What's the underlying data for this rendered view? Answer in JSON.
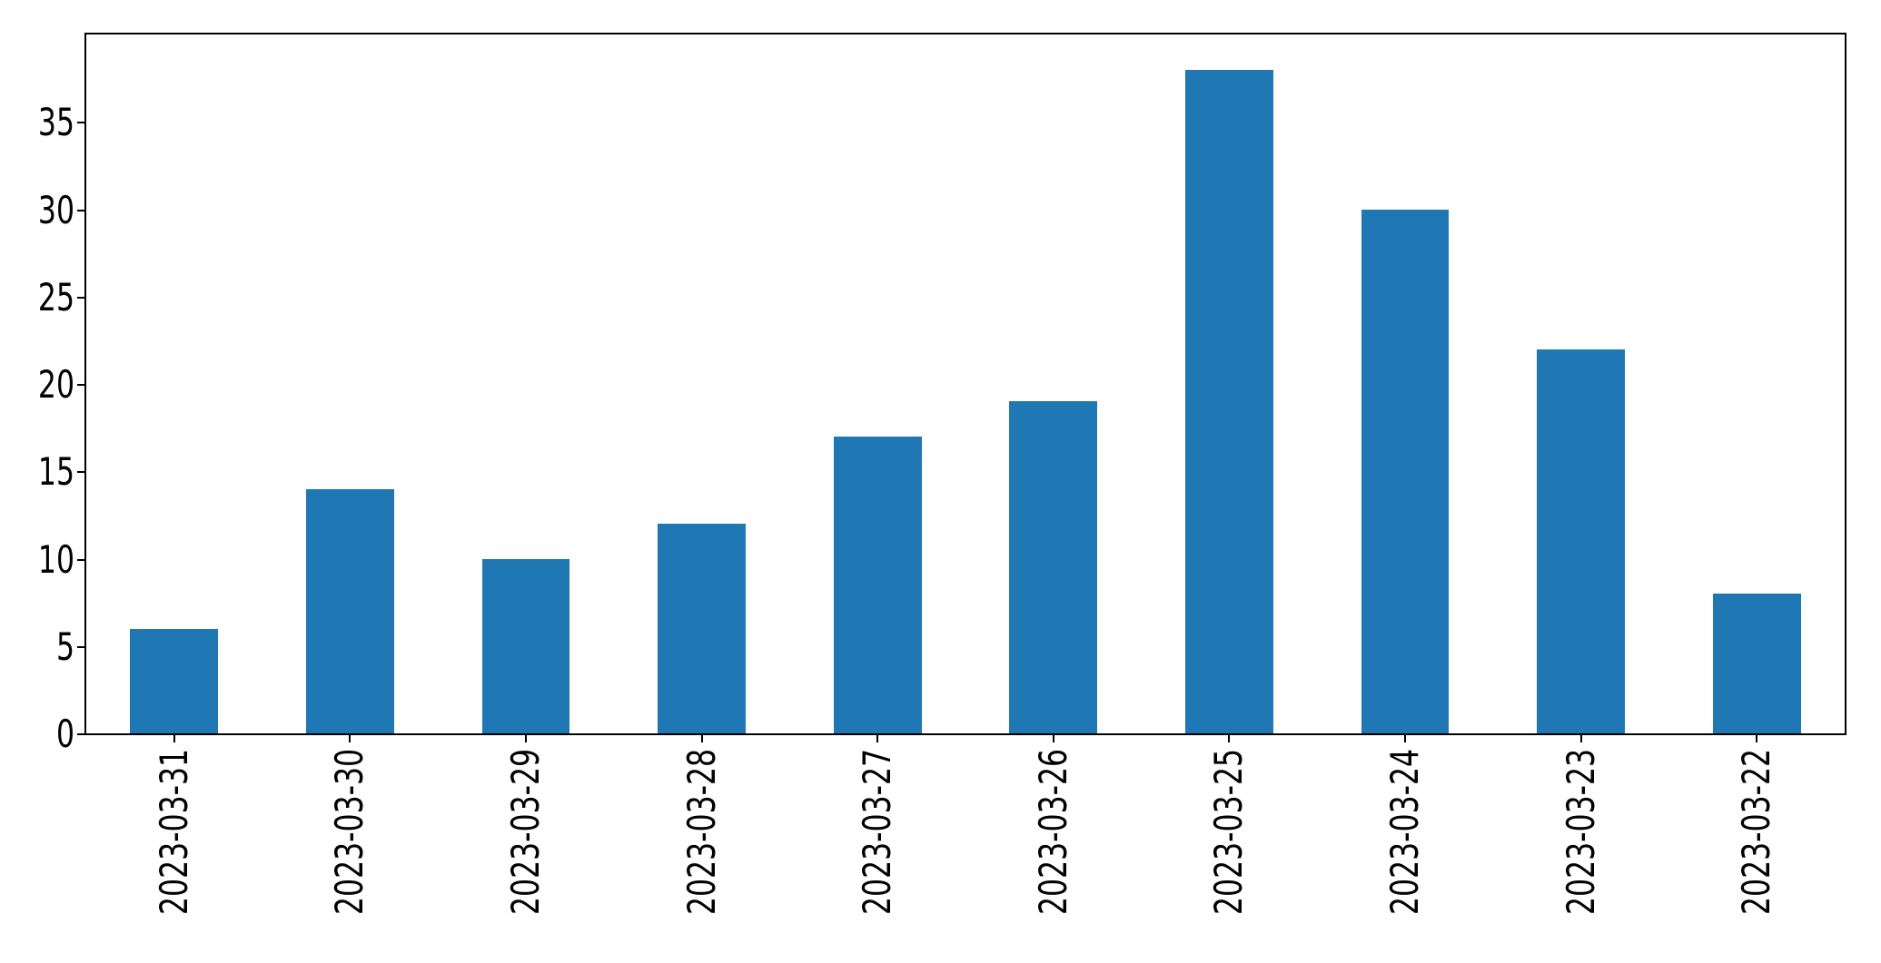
{
  "chart_data": {
    "type": "bar",
    "title": "",
    "xlabel": "",
    "ylabel": "",
    "categories": [
      "2023-03-31",
      "2023-03-30",
      "2023-03-29",
      "2023-03-28",
      "2023-03-27",
      "2023-03-26",
      "2023-03-25",
      "2023-03-24",
      "2023-03-23",
      "2023-03-22"
    ],
    "values": [
      6,
      14,
      10,
      12,
      17,
      19,
      38,
      30,
      22,
      8
    ],
    "yticks": [
      0,
      5,
      10,
      15,
      20,
      25,
      30,
      35
    ],
    "ylim": [
      0,
      40
    ],
    "bar_color": "#1f77b4",
    "axis_color": "#000000",
    "background_color": "#ffffff",
    "grid": false,
    "legend": "none",
    "bar_width_fraction": 0.5,
    "x_tick_label_rotation_deg": 90
  }
}
